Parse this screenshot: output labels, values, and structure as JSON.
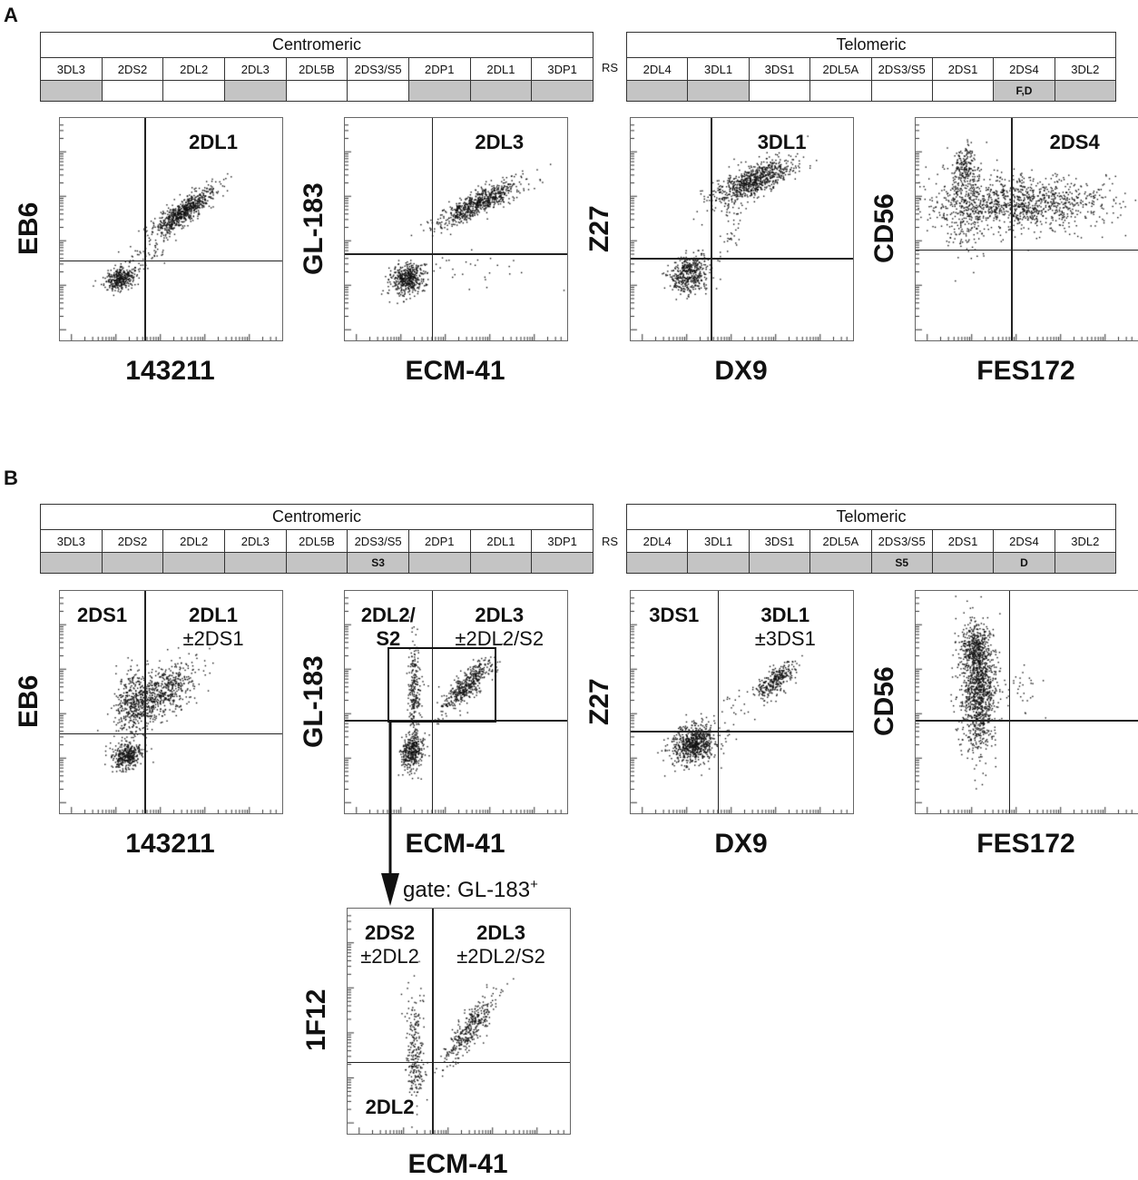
{
  "panels": {
    "A": {
      "letter": "A",
      "centromeric_label": "Centromeric",
      "telomeric_label": "Telomeric",
      "rs_label": "RS",
      "centromeric_genes": [
        {
          "name": "3DL3",
          "present": true,
          "note": ""
        },
        {
          "name": "2DS2",
          "present": false,
          "note": ""
        },
        {
          "name": "2DL2",
          "present": false,
          "note": ""
        },
        {
          "name": "2DL3",
          "present": true,
          "note": ""
        },
        {
          "name": "2DL5B",
          "present": false,
          "note": ""
        },
        {
          "name": "2DS3/S5",
          "present": false,
          "note": ""
        },
        {
          "name": "2DP1",
          "present": true,
          "note": ""
        },
        {
          "name": "2DL1",
          "present": true,
          "note": ""
        },
        {
          "name": "3DP1",
          "present": true,
          "note": ""
        }
      ],
      "telomeric_genes": [
        {
          "name": "2DL4",
          "present": true,
          "note": ""
        },
        {
          "name": "3DL1",
          "present": true,
          "note": ""
        },
        {
          "name": "3DS1",
          "present": false,
          "note": ""
        },
        {
          "name": "2DL5A",
          "present": false,
          "note": ""
        },
        {
          "name": "2DS3/S5",
          "present": false,
          "note": ""
        },
        {
          "name": "2DS1",
          "present": false,
          "note": ""
        },
        {
          "name": "2DS4",
          "present": true,
          "note": "F,D"
        },
        {
          "name": "3DL2",
          "present": true,
          "note": ""
        }
      ],
      "plots": [
        {
          "id": "A1",
          "xlabel": "143211",
          "ylabel": "EB6",
          "labels": [
            {
              "pos": "tr",
              "bold": "2DL1",
              "normal": ""
            }
          ]
        },
        {
          "id": "A2",
          "xlabel": "ECM-41",
          "ylabel": "GL-183",
          "labels": [
            {
              "pos": "tr",
              "bold": "2DL3",
              "normal": ""
            }
          ]
        },
        {
          "id": "A3",
          "xlabel": "DX9",
          "ylabel": "Z27",
          "labels": [
            {
              "pos": "tr",
              "bold": "3DL1",
              "normal": ""
            }
          ]
        },
        {
          "id": "A4",
          "xlabel": "FES172",
          "ylabel": "CD56",
          "labels": [
            {
              "pos": "tr",
              "bold": "2DS4",
              "normal": ""
            }
          ]
        }
      ]
    },
    "B": {
      "letter": "B",
      "centromeric_label": "Centromeric",
      "telomeric_label": "Telomeric",
      "rs_label": "RS",
      "centromeric_genes": [
        {
          "name": "3DL3",
          "present": true,
          "note": ""
        },
        {
          "name": "2DS2",
          "present": true,
          "note": ""
        },
        {
          "name": "2DL2",
          "present": true,
          "note": ""
        },
        {
          "name": "2DL3",
          "present": true,
          "note": ""
        },
        {
          "name": "2DL5B",
          "present": true,
          "note": ""
        },
        {
          "name": "2DS3/S5",
          "present": true,
          "note": "S3"
        },
        {
          "name": "2DP1",
          "present": true,
          "note": ""
        },
        {
          "name": "2DL1",
          "present": true,
          "note": ""
        },
        {
          "name": "3DP1",
          "present": true,
          "note": ""
        }
      ],
      "telomeric_genes": [
        {
          "name": "2DL4",
          "present": true,
          "note": ""
        },
        {
          "name": "3DL1",
          "present": true,
          "note": ""
        },
        {
          "name": "3DS1",
          "present": true,
          "note": ""
        },
        {
          "name": "2DL5A",
          "present": true,
          "note": ""
        },
        {
          "name": "2DS3/S5",
          "present": true,
          "note": "S5"
        },
        {
          "name": "2DS1",
          "present": true,
          "note": ""
        },
        {
          "name": "2DS4",
          "present": true,
          "note": "D"
        },
        {
          "name": "3DL2",
          "present": true,
          "note": ""
        }
      ],
      "plots": [
        {
          "id": "B1",
          "xlabel": "143211",
          "ylabel": "EB6",
          "labels": [
            {
              "pos": "tl",
              "bold": "2DS1",
              "normal": ""
            },
            {
              "pos": "tr",
              "bold": "2DL1",
              "normal": "±2DS1"
            }
          ]
        },
        {
          "id": "B2",
          "xlabel": "ECM-41",
          "ylabel": "GL-183",
          "labels": [
            {
              "pos": "tl",
              "bold": "2DL2/\nS2",
              "normal": ""
            },
            {
              "pos": "tr",
              "bold": "2DL3",
              "normal": "±2DL2/S2"
            }
          ]
        },
        {
          "id": "B3",
          "xlabel": "DX9",
          "ylabel": "Z27",
          "labels": [
            {
              "pos": "tl",
              "bold": "3DS1",
              "normal": ""
            },
            {
              "pos": "tr",
              "bold": "3DL1",
              "normal": "±3DS1"
            }
          ]
        },
        {
          "id": "B4",
          "xlabel": "FES172",
          "ylabel": "CD56",
          "labels": []
        },
        {
          "id": "B5",
          "xlabel": "ECM-41",
          "ylabel": "1F12",
          "labels": [
            {
              "pos": "tl",
              "bold": "2DS2",
              "normal": "±2DL2"
            },
            {
              "pos": "tr",
              "bold": "2DL3",
              "normal": "±2DL2/S2"
            },
            {
              "pos": "bl",
              "bold": "2DL2",
              "normal": ""
            }
          ]
        }
      ],
      "gate_label": "gate: GL-183",
      "gate_sup": "+"
    }
  },
  "chart_data": [
    {
      "type": "scatter",
      "id": "A1",
      "xlabel": "143211",
      "ylabel": "EB6",
      "populations": [
        {
          "name": "2DL1",
          "quadrant": "upper-right",
          "center": [
            0.55,
            0.58
          ],
          "events": 700
        },
        {
          "quadrant": "lower-left",
          "center": [
            0.27,
            0.28
          ],
          "events": 350
        }
      ]
    },
    {
      "type": "scatter",
      "id": "A2",
      "xlabel": "ECM-41",
      "ylabel": "GL-183",
      "populations": [
        {
          "name": "2DL3",
          "quadrant": "upper-right",
          "center": [
            0.6,
            0.62
          ],
          "events": 700
        },
        {
          "quadrant": "lower-left",
          "center": [
            0.28,
            0.28
          ],
          "events": 450
        }
      ]
    },
    {
      "type": "scatter",
      "id": "A3",
      "xlabel": "DX9",
      "ylabel": "Z27",
      "populations": [
        {
          "name": "3DL1",
          "quadrant": "upper-right",
          "center": [
            0.55,
            0.72
          ],
          "events": 800
        },
        {
          "quadrant": "lower-left",
          "center": [
            0.26,
            0.3
          ],
          "events": 450
        }
      ]
    },
    {
      "type": "scatter",
      "id": "A4",
      "xlabel": "FES172",
      "ylabel": "CD56",
      "populations": [
        {
          "name": "2DS4",
          "quadrant": "upper",
          "center": [
            0.45,
            0.62
          ],
          "events": 1500
        }
      ]
    },
    {
      "type": "scatter",
      "id": "B1",
      "xlabel": "143211",
      "ylabel": "EB6",
      "populations": [
        {
          "name": "2DS1",
          "quadrant": "upper-left",
          "center": [
            0.33,
            0.5
          ],
          "events": 350
        },
        {
          "name": "2DL1 ±2DS1",
          "quadrant": "upper-right",
          "center": [
            0.45,
            0.54
          ],
          "events": 600
        },
        {
          "quadrant": "lower-left",
          "center": [
            0.3,
            0.26
          ],
          "events": 350
        }
      ]
    },
    {
      "type": "scatter",
      "id": "B2",
      "xlabel": "ECM-41",
      "ylabel": "GL-183",
      "populations": [
        {
          "name": "2DL2/S2",
          "quadrant": "upper-left",
          "center": [
            0.31,
            0.55
          ],
          "events": 250
        },
        {
          "name": "2DL3 ±2DL2/S2",
          "quadrant": "upper-right",
          "center": [
            0.55,
            0.58
          ],
          "events": 450
        },
        {
          "quadrant": "lower-left",
          "center": [
            0.3,
            0.28
          ],
          "events": 350
        }
      ]
    },
    {
      "type": "scatter",
      "id": "B3",
      "xlabel": "DX9",
      "ylabel": "Z27",
      "populations": [
        {
          "name": "3DS1",
          "quadrant": "upper-left",
          "center": [
            0.3,
            0.35
          ],
          "events": 30
        },
        {
          "name": "3DL1 ±3DS1",
          "quadrant": "upper-right",
          "center": [
            0.65,
            0.6
          ],
          "events": 300
        },
        {
          "quadrant": "lower-left",
          "center": [
            0.28,
            0.31
          ],
          "events": 700
        }
      ]
    },
    {
      "type": "scatter",
      "id": "B4",
      "xlabel": "FES172",
      "ylabel": "CD56",
      "populations": [
        {
          "quadrant": "upper-left",
          "center": [
            0.28,
            0.55
          ],
          "events": 1500
        }
      ]
    },
    {
      "type": "scatter",
      "id": "B5",
      "xlabel": "ECM-41",
      "ylabel": "1F12",
      "populations": [
        {
          "name": "2DS2 ±2DL2",
          "quadrant": "upper-left",
          "center": [
            0.3,
            0.4
          ],
          "events": 200
        },
        {
          "name": "2DL3 ±2DL2/S2",
          "quadrant": "upper-right",
          "center": [
            0.55,
            0.47
          ],
          "events": 350
        },
        {
          "name": "2DL2",
          "quadrant": "lower-left",
          "center": [
            0.3,
            0.27
          ],
          "events": 40
        }
      ]
    }
  ]
}
